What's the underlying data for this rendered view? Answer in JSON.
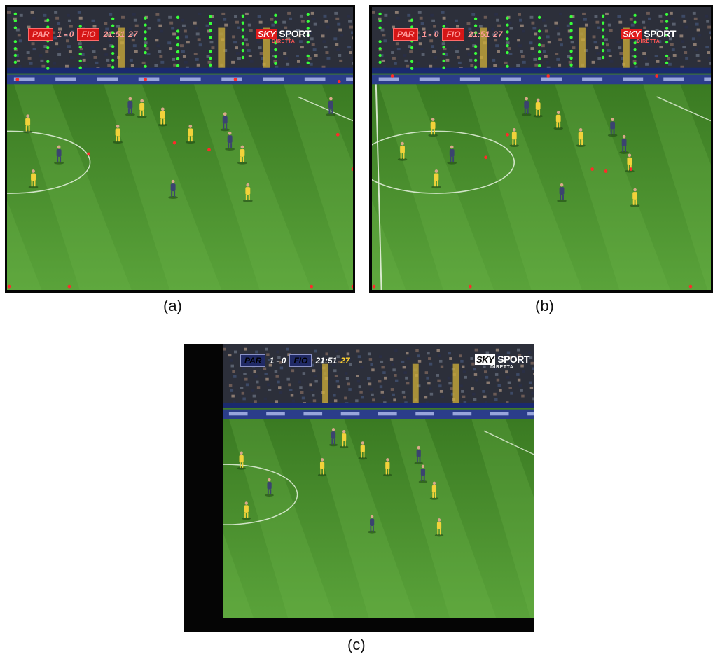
{
  "panels": [
    {
      "id": "a",
      "caption": "(a)",
      "scorebug": {
        "home": "PAR",
        "score": "1 - 0",
        "away": "FIO",
        "clock": "21:51",
        "added": "27"
      },
      "broadcaster": {
        "logo": "SKY",
        "name": "SPORT",
        "sub": "DIRETTA"
      },
      "overlay": "feature-points"
    },
    {
      "id": "b",
      "caption": "(b)",
      "scorebug": {
        "home": "PAR",
        "score": "1 - 0",
        "away": "FIO",
        "clock": "21:51",
        "added": "27"
      },
      "broadcaster": {
        "logo": "SKY",
        "name": "SPORT",
        "sub": "DIRETTA"
      },
      "overlay": "feature-points"
    },
    {
      "id": "c",
      "caption": "(c)",
      "scorebug": {
        "home": "PAR",
        "score": "1 - 0",
        "away": "FIO",
        "clock": "21:51",
        "added": "27"
      },
      "broadcaster": {
        "logo": "SKY",
        "name": "SPORT",
        "sub": "DIRETTA"
      },
      "overlay": "none"
    }
  ],
  "colors": {
    "pitch_light": "#5aa33a",
    "pitch_dark": "#3a7a22",
    "team_yellow": "#f2d23a",
    "team_navy": "#3b4370",
    "marker_red": "#ff2a2a",
    "marker_green": "#38ff3a"
  }
}
